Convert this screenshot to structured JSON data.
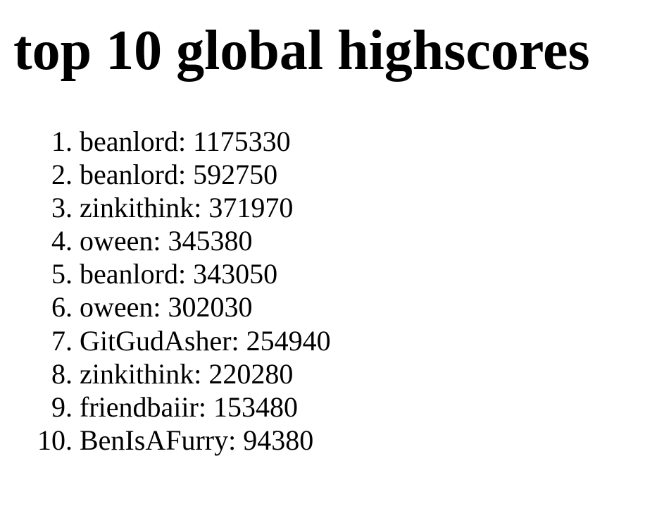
{
  "page": {
    "title": "top 10 global highscores"
  },
  "scores": [
    {
      "rank": "1.",
      "player": "beanlord",
      "score": "1175330"
    },
    {
      "rank": "2.",
      "player": "beanlord",
      "score": "592750"
    },
    {
      "rank": "3.",
      "player": "zinkithink",
      "score": "371970"
    },
    {
      "rank": "4.",
      "player": "oween",
      "score": "345380"
    },
    {
      "rank": "5.",
      "player": "beanlord",
      "score": "343050"
    },
    {
      "rank": "6.",
      "player": "oween",
      "score": "302030"
    },
    {
      "rank": "7.",
      "player": "GitGudAsher",
      "score": "254940"
    },
    {
      "rank": "8.",
      "player": "zinkithink",
      "score": "220280"
    },
    {
      "rank": "9.",
      "player": "friendbaiir",
      "score": "153480"
    },
    {
      "rank": "10.",
      "player": "BenIsAFurry",
      "score": "94380"
    }
  ]
}
